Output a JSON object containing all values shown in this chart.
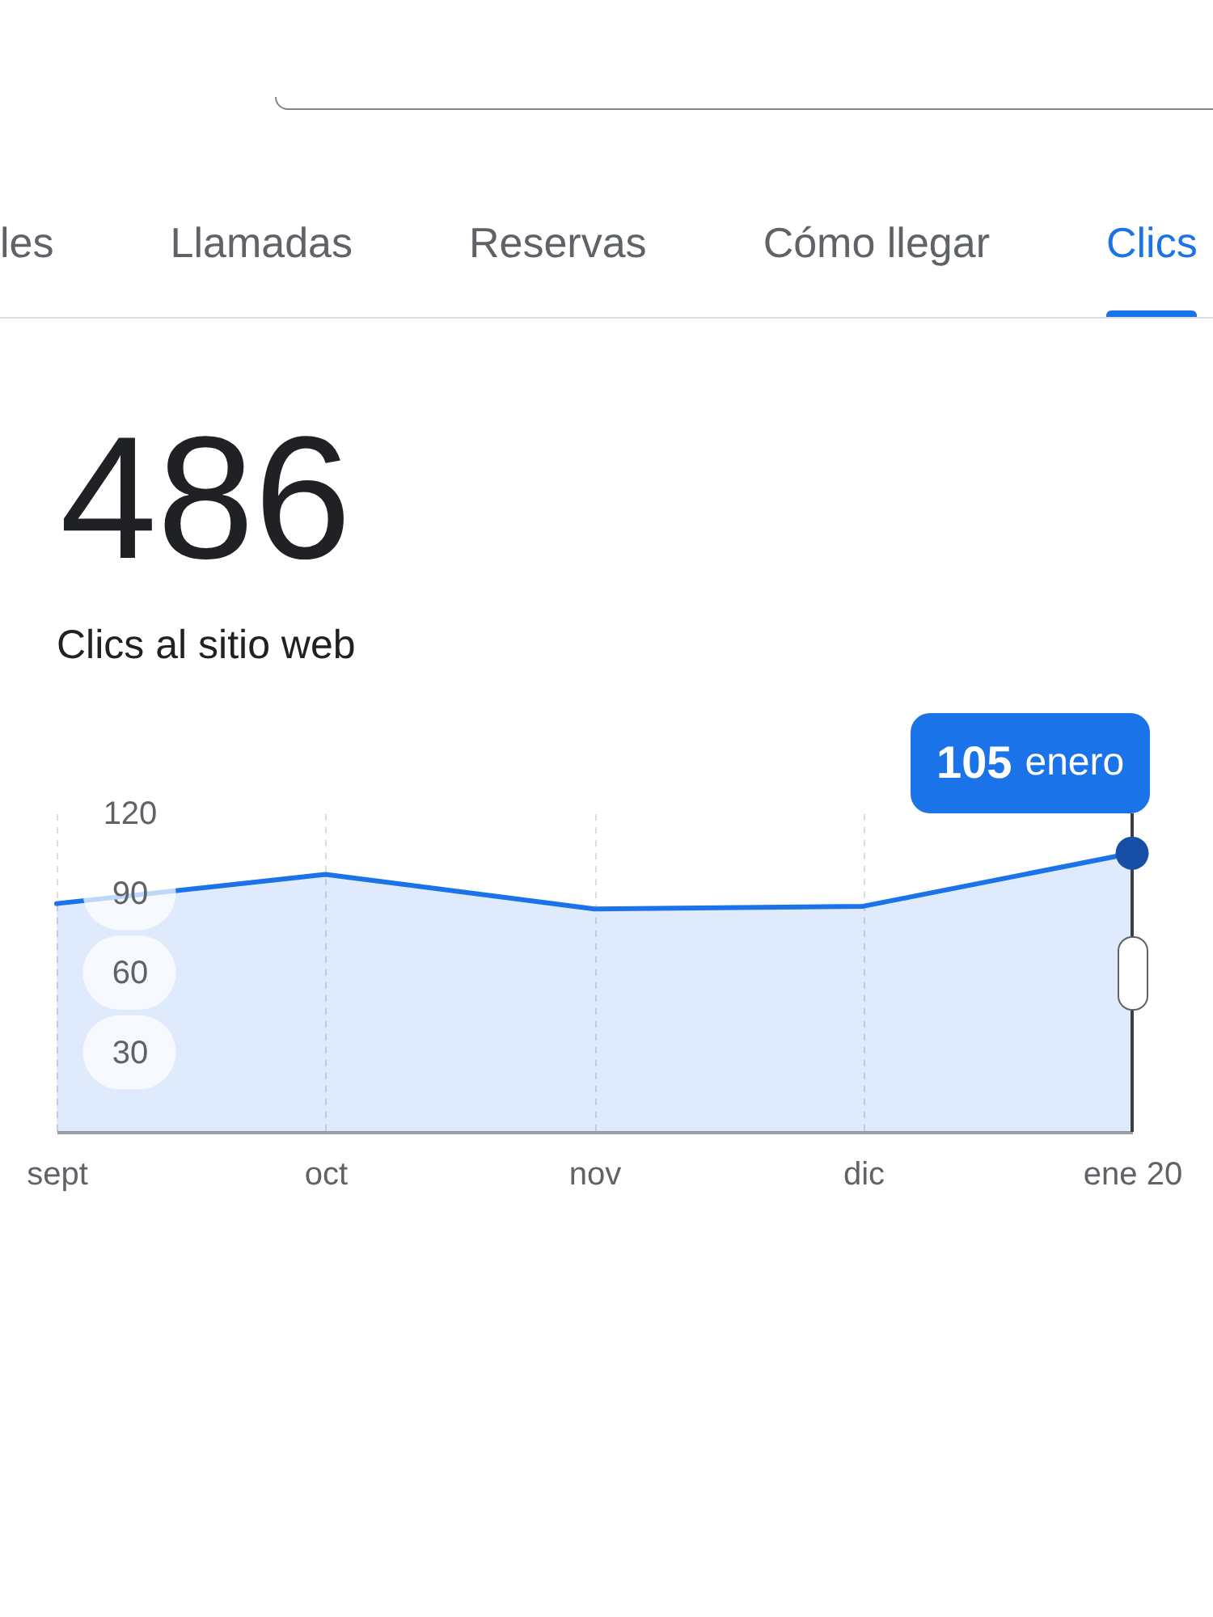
{
  "chart_data": {
    "type": "area",
    "title": "486",
    "subtitle": "Clics al sitio web",
    "categories": [
      "sept",
      "oct",
      "nov",
      "dic",
      "ene 20"
    ],
    "series": [
      {
        "color": "#1a73e8",
        "values": [
          86,
          97,
          84,
          85,
          105
        ]
      }
    ],
    "ylim": [
      0,
      120
    ],
    "yticks": [
      30,
      60,
      90,
      120
    ],
    "grid": "x",
    "ref_lines": [
      {
        "axis": "x",
        "value": "ene 20",
        "color": "#3c4043"
      }
    ],
    "annotations": [
      "les",
      "Llamadas",
      "Reservas",
      "Cómo llegar",
      "Clics",
      {
        "text": "105 enero",
        "x": "ene 20",
        "y": 105
      }
    ]
  }
}
